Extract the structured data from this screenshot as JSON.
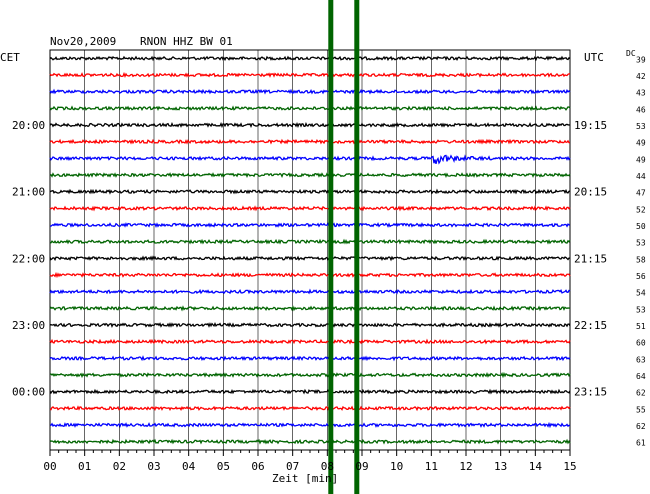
{
  "header": {
    "date": "Nov20,2009",
    "station": "RNON HHZ BW 01",
    "left_timezone": "CET",
    "right_timezone": "UTC",
    "dc_label": "DC"
  },
  "chart_data": {
    "type": "line",
    "title": "Nov20,2009   RNON HHZ BW 01",
    "xlabel": "Zeit [min]",
    "xlim": [
      0,
      15
    ],
    "x_ticks": [
      "00",
      "01",
      "02",
      "03",
      "04",
      "05",
      "06",
      "07",
      "08",
      "09",
      "10",
      "11",
      "12",
      "13",
      "14",
      "15"
    ],
    "trace_colors": [
      "#000000",
      "#ff0000",
      "#0000ff",
      "#006400"
    ],
    "hour_labels_left": [
      {
        "row": 4,
        "text": "20:00"
      },
      {
        "row": 8,
        "text": "21:00"
      },
      {
        "row": 12,
        "text": "22:00"
      },
      {
        "row": 16,
        "text": "23:00"
      },
      {
        "row": 20,
        "text": "00:00"
      }
    ],
    "hour_labels_right": [
      {
        "row": 4,
        "text": "19:15"
      },
      {
        "row": 8,
        "text": "20:15"
      },
      {
        "row": 12,
        "text": "21:15"
      },
      {
        "row": 16,
        "text": "22:15"
      },
      {
        "row": 20,
        "text": "23:15"
      }
    ],
    "dc_offsets": [
      39,
      42,
      43,
      46,
      53,
      49,
      49,
      44,
      47,
      52,
      50,
      53,
      58,
      56,
      54,
      53,
      51,
      60,
      63,
      64,
      62,
      55,
      62,
      61
    ],
    "events": [
      {
        "row": 6,
        "start_min": 11.0,
        "end_min": 12.8,
        "peak": 1.0
      }
    ],
    "marker_lines_min": [
      8.1,
      8.85
    ],
    "marker_color": "#006400"
  }
}
